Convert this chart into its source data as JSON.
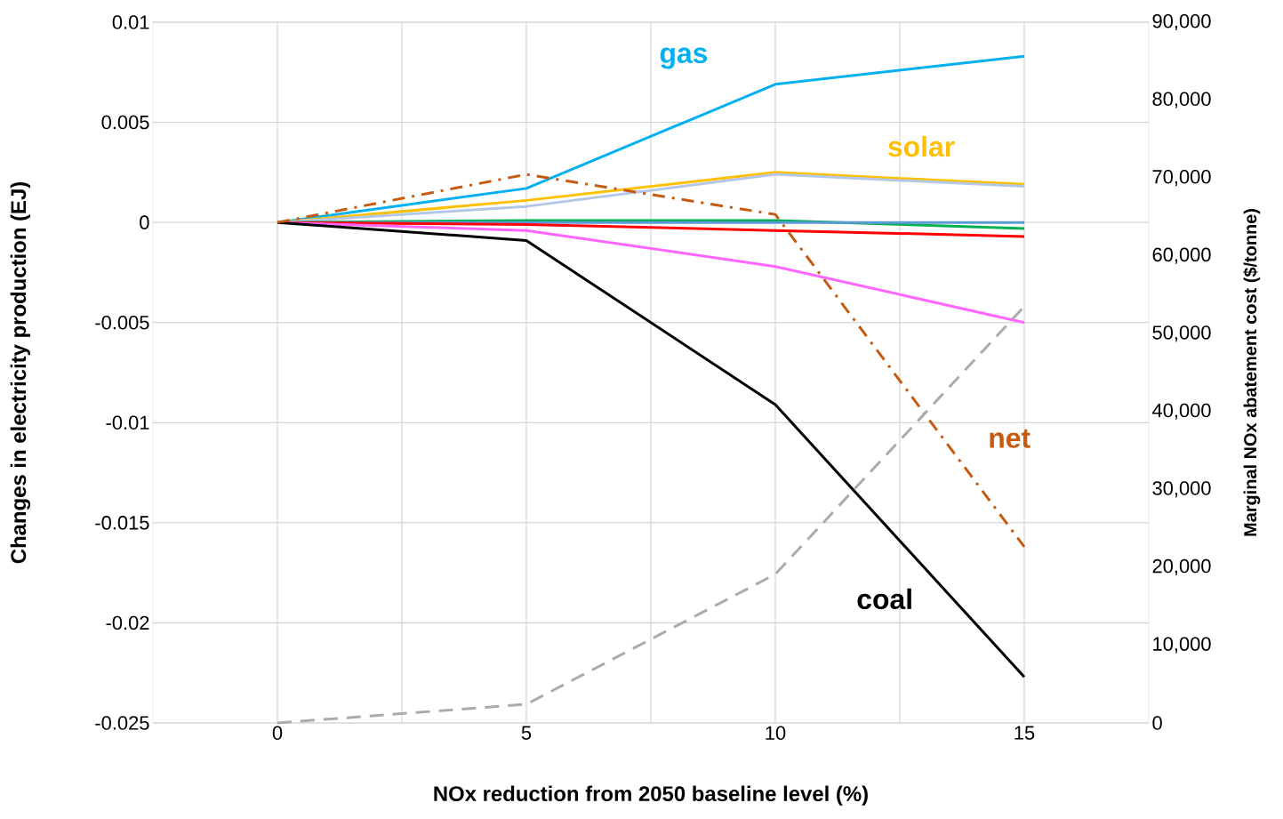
{
  "chart_data": {
    "type": "line",
    "xlabel": "NOx reduction from 2050 baseline level (%)",
    "ylabel": "Changes in electricity production (EJ)",
    "y2label": "Marginal NOx abatement cost ($/tonne)",
    "x": [
      0,
      5,
      10,
      15
    ],
    "xlim": [
      -2.5,
      17.5
    ],
    "xticks": [
      0,
      {
        "value": 2.5,
        "label": null
      },
      5,
      {
        "value": 7.5,
        "label": null
      },
      10,
      {
        "value": 12.5,
        "label": null
      },
      15
    ],
    "ylim": [
      -0.025,
      0.01
    ],
    "yticks": [
      -0.025,
      -0.02,
      -0.015,
      -0.01,
      -0.005,
      0,
      0.005,
      0.01
    ],
    "y2lim": [
      0,
      90000
    ],
    "y2ticks": [
      0,
      {
        "value": 10000,
        "label": "10,000"
      },
      {
        "value": 20000,
        "label": "20,000"
      },
      {
        "value": 30000,
        "label": "30,000"
      },
      {
        "value": 40000,
        "label": "40,000"
      },
      {
        "value": 50000,
        "label": "50,000"
      },
      {
        "value": 60000,
        "label": "60,000"
      },
      {
        "value": 70000,
        "label": "70,000"
      },
      {
        "value": 80000,
        "label": "80,000"
      },
      {
        "value": 90000,
        "label": "90,000"
      }
    ],
    "grid": true,
    "marker": "none",
    "line_style": "solid",
    "series": [
      {
        "name": "gas",
        "color": "#00b0f0",
        "values": [
          0,
          0.0017,
          0.0069,
          0.0083
        ]
      },
      {
        "name": "solar",
        "color": "#ffc000",
        "values": [
          0,
          0.0011,
          0.0025,
          0.0019
        ]
      },
      {
        "color": "#b4c7e7",
        "values": [
          0,
          0.0008,
          0.0024,
          0.0018
        ]
      },
      {
        "color": "#00b050",
        "values": [
          0,
          0.0001,
          0.0001,
          -0.0003
        ]
      },
      {
        "color": "#5b9bd5",
        "values": [
          0,
          0,
          0,
          0
        ]
      },
      {
        "color": "#ff0000",
        "values": [
          0,
          -0.0001,
          -0.0004,
          -0.0007
        ]
      },
      {
        "color": "#ff66ff",
        "values": [
          0,
          -0.0004,
          -0.0022,
          -0.005
        ]
      },
      {
        "name": "coal",
        "color": "#000000",
        "values": [
          0,
          -0.0009,
          -0.0091,
          -0.0227
        ]
      },
      {
        "name": "net",
        "color": "#c55a11",
        "line_style": "dashdot",
        "values": [
          0,
          0.0024,
          0.0004,
          -0.0162
        ]
      },
      {
        "color": "#aeaaaa",
        "line_style": "dashed",
        "axis": "y2",
        "values": [
          0,
          2400,
          19100,
          53500
        ]
      }
    ]
  }
}
